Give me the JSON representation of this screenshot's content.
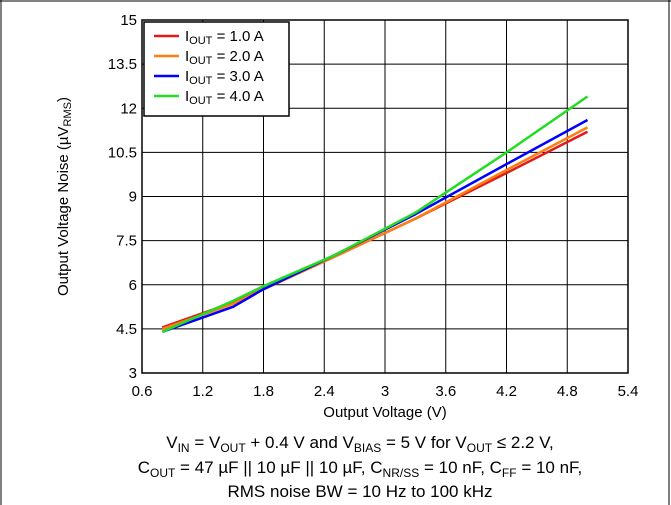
{
  "chart_data": {
    "type": "line",
    "title": "",
    "xlabel": "Output Voltage (V)",
    "ylabel": {
      "main": "Output Voltage Noise (µV",
      "sub": "RMS",
      "end": ")"
    },
    "xlim": [
      0.6,
      5.4
    ],
    "ylim": [
      3,
      15
    ],
    "xticks": [
      "0.6",
      "1.2",
      "1.8",
      "2.4",
      "3",
      "3.6",
      "4.2",
      "4.8",
      "5.4"
    ],
    "yticks": [
      "3",
      "4.5",
      "6",
      "7.5",
      "9",
      "10.5",
      "12",
      "13.5",
      "15"
    ],
    "grid": true,
    "legend_position": "top-left",
    "series": [
      {
        "name": {
          "main": "I",
          "sub": "OUT",
          "rest": " = 1.0 A"
        },
        "color": "#e41a1c",
        "x": [
          0.8,
          1.5,
          1.8,
          2.5,
          3.3,
          4.2,
          5.0
        ],
        "y": [
          4.55,
          5.4,
          5.85,
          6.95,
          8.25,
          9.8,
          11.2
        ]
      },
      {
        "name": {
          "main": "I",
          "sub": "OUT",
          "rest": " = 2.0 A"
        },
        "color": "#ff7f0e",
        "x": [
          0.8,
          1.5,
          1.8,
          2.5,
          3.3,
          4.2,
          5.0
        ],
        "y": [
          4.5,
          5.35,
          5.85,
          6.95,
          8.25,
          9.9,
          11.35
        ]
      },
      {
        "name": {
          "main": "I",
          "sub": "OUT",
          "rest": " = 3.0 A"
        },
        "color": "#0000ff",
        "x": [
          0.8,
          1.5,
          1.8,
          2.5,
          3.3,
          4.2,
          5.0
        ],
        "y": [
          4.4,
          5.25,
          5.85,
          7.0,
          8.4,
          10.1,
          11.6
        ]
      },
      {
        "name": {
          "main": "I",
          "sub": "OUT",
          "rest": " = 4.0 A"
        },
        "color": "#22dd22",
        "x": [
          0.8,
          1.5,
          1.8,
          2.5,
          3.3,
          4.2,
          5.0
        ],
        "y": [
          4.4,
          5.45,
          5.95,
          7.0,
          8.45,
          10.5,
          12.4
        ]
      }
    ]
  },
  "conditions": [
    [
      {
        "t": "V"
      },
      {
        "t": "IN",
        "sub": true
      },
      {
        "t": " = V"
      },
      {
        "t": "OUT",
        "sub": true
      },
      {
        "t": " + 0.4 V and V"
      },
      {
        "t": "BIAS",
        "sub": true
      },
      {
        "t": " = 5 V for V"
      },
      {
        "t": "OUT",
        "sub": true
      },
      {
        "t": " ≤ 2.2 V,"
      }
    ],
    [
      {
        "t": "C"
      },
      {
        "t": "OUT",
        "sub": true
      },
      {
        "t": " = 47 µF || 10 µF || 10 µF, C"
      },
      {
        "t": "NR/SS",
        "sub": true
      },
      {
        "t": " = 10 nF, C"
      },
      {
        "t": "FF",
        "sub": true
      },
      {
        "t": " = 10 nF,"
      }
    ],
    [
      {
        "t": "RMS noise BW = 10 Hz to 100 kHz"
      }
    ]
  ]
}
